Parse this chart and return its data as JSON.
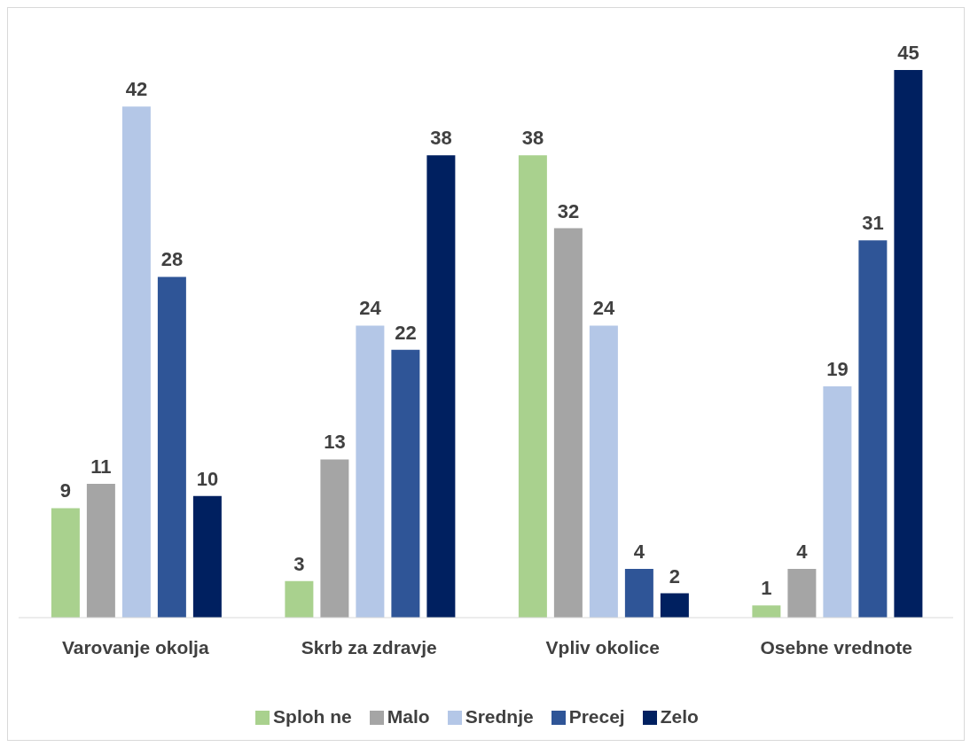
{
  "chart_data": {
    "type": "bar",
    "categories": [
      "Varovanje okolja",
      "Skrb za zdravje",
      "Vpliv okolice",
      "Osebne vrednote"
    ],
    "series": [
      {
        "name": "Sploh ne",
        "color": "#a9d18e",
        "values": [
          9,
          3,
          38,
          1
        ]
      },
      {
        "name": "Malo",
        "color": "#a5a5a5",
        "values": [
          11,
          13,
          32,
          4
        ]
      },
      {
        "name": "Srednje",
        "color": "#b4c7e7",
        "values": [
          42,
          24,
          24,
          19
        ]
      },
      {
        "name": "Precej",
        "color": "#2f5597",
        "values": [
          28,
          22,
          4,
          31
        ]
      },
      {
        "name": "Zelo",
        "color": "#002060",
        "values": [
          10,
          38,
          2,
          45
        ]
      }
    ],
    "data_labels": true,
    "legend": "bottom",
    "grid": false
  }
}
